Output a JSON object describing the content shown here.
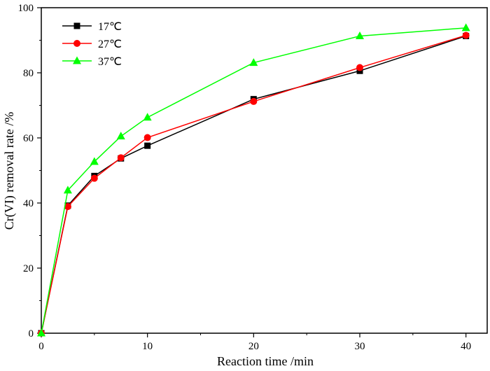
{
  "chart_data": {
    "type": "line",
    "xlabel": "Reaction time /min",
    "ylabel": "Cr(VI) removal rate /%",
    "xlim": [
      0,
      42
    ],
    "ylim": [
      0,
      100
    ],
    "x_ticks": [
      0,
      10,
      20,
      30,
      40
    ],
    "y_ticks": [
      0,
      20,
      40,
      60,
      80,
      100
    ],
    "grid": false,
    "legend_position": "top-left",
    "x": [
      0,
      2.5,
      5,
      7.5,
      10,
      20,
      30,
      40
    ],
    "series": [
      {
        "name": "17℃",
        "color": "#000000",
        "marker": "square",
        "values": [
          0,
          39.2,
          48.3,
          53.7,
          57.6,
          71.9,
          80.6,
          91.3
        ]
      },
      {
        "name": "27℃",
        "color": "#ff0000",
        "marker": "circle",
        "values": [
          0,
          38.9,
          47.6,
          53.9,
          60.1,
          71.2,
          81.6,
          91.5
        ]
      },
      {
        "name": "37℃",
        "color": "#00ff00",
        "marker": "triangle",
        "values": [
          0,
          43.9,
          52.7,
          60.5,
          66.3,
          83.1,
          91.3,
          93.8
        ]
      }
    ]
  }
}
